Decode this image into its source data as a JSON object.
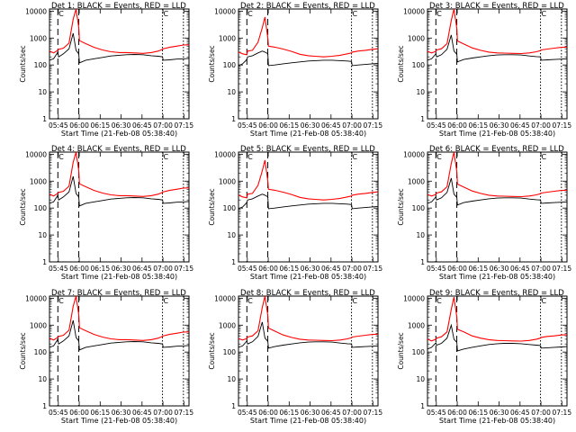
{
  "colors": {
    "events": "#000000",
    "lld": "#ff0000",
    "axes": "#000000",
    "background": "#ffffff"
  },
  "shared": {
    "ylabel": "Counts/sec",
    "xlabel": "Start Time (21-Feb-08 05:38:40)",
    "x_tick_labels": [
      "05:45",
      "06:00",
      "06:15",
      "06:30",
      "06:45",
      "07:00",
      "07:15"
    ],
    "y_tick_labels": [
      "1",
      "10",
      "100",
      "1000",
      "10000"
    ],
    "ylim": [
      1,
      12000
    ],
    "xlim_minutes_after_start": [
      0,
      100
    ],
    "y_scale": "log",
    "dashed_markers_minutes": [
      6,
      21
    ],
    "dotted_markers_minutes": [
      81,
      96
    ],
    "flag_marker": "C"
  },
  "chart_data": [
    {
      "type": "line",
      "title": "Det 1: BLACK = Events, RED = LLD",
      "series": [
        {
          "name": "BLACK = Events",
          "x": [
            0,
            3,
            6,
            6.5,
            10,
            14,
            17,
            19,
            21,
            21.5,
            26,
            32,
            38,
            44,
            50,
            55,
            61,
            67,
            73,
            78,
            81,
            81.5,
            86,
            91,
            96,
            100
          ],
          "values": [
            150,
            170,
            300,
            200,
            260,
            400,
            1500,
            350,
            260,
            120,
            150,
            170,
            190,
            215,
            230,
            240,
            245,
            240,
            220,
            210,
            200,
            150,
            155,
            165,
            170,
            175
          ]
        },
        {
          "name": "RED = LLD",
          "x": [
            0,
            3,
            6,
            6.5,
            10,
            14,
            17,
            19,
            21,
            21.5,
            26,
            32,
            38,
            44,
            50,
            55,
            61,
            67,
            73,
            78,
            81,
            81.5,
            86,
            91,
            96,
            100
          ],
          "values": [
            330,
            280,
            350,
            380,
            420,
            650,
            5000,
            14000,
            2500,
            800,
            620,
            450,
            360,
            310,
            290,
            290,
            280,
            270,
            290,
            330,
            380,
            400,
            450,
            500,
            550,
            560
          ]
        }
      ]
    },
    {
      "type": "line",
      "title": "Det 2: BLACK = Events, RED = LLD",
      "series": [
        {
          "name": "BLACK = Events",
          "x": [
            0,
            3,
            6,
            6.5,
            10,
            14,
            17,
            19,
            21,
            21.5,
            26,
            32,
            38,
            44,
            50,
            55,
            61,
            67,
            73,
            78,
            81,
            81.5,
            86,
            91,
            96,
            100
          ],
          "values": [
            95,
            110,
            160,
            200,
            220,
            280,
            330,
            300,
            260,
            95,
            100,
            110,
            120,
            130,
            140,
            145,
            150,
            150,
            145,
            140,
            135,
            95,
            100,
            105,
            110,
            115
          ]
        },
        {
          "name": "RED = LLD",
          "x": [
            0,
            3,
            6,
            6.5,
            10,
            14,
            17,
            19,
            21,
            21.5,
            26,
            32,
            38,
            44,
            50,
            55,
            61,
            67,
            73,
            78,
            81,
            81.5,
            86,
            91,
            96,
            100
          ],
          "values": [
            300,
            260,
            240,
            330,
            350,
            700,
            2400,
            6000,
            1000,
            500,
            460,
            390,
            320,
            250,
            220,
            210,
            200,
            210,
            230,
            260,
            280,
            300,
            330,
            350,
            380,
            400
          ]
        }
      ]
    },
    {
      "type": "line",
      "title": "Det 3: BLACK = Events, RED = LLD",
      "series": [
        {
          "name": "BLACK = Events",
          "x": [
            0,
            3,
            6,
            6.5,
            10,
            14,
            17,
            19,
            21,
            21.5,
            26,
            32,
            38,
            44,
            50,
            55,
            61,
            67,
            73,
            78,
            81,
            81.5,
            86,
            91,
            96,
            100
          ],
          "values": [
            150,
            170,
            260,
            200,
            240,
            380,
            1300,
            330,
            250,
            130,
            160,
            180,
            200,
            220,
            235,
            240,
            240,
            235,
            215,
            205,
            200,
            150,
            155,
            160,
            165,
            170
          ]
        },
        {
          "name": "RED = LLD",
          "x": [
            0,
            3,
            6,
            6.5,
            10,
            14,
            17,
            19,
            21,
            21.5,
            26,
            32,
            38,
            44,
            50,
            55,
            61,
            67,
            73,
            78,
            81,
            81.5,
            86,
            91,
            96,
            100
          ],
          "values": [
            320,
            280,
            320,
            360,
            400,
            620,
            4500,
            13000,
            2300,
            780,
            600,
            430,
            350,
            300,
            280,
            275,
            270,
            265,
            280,
            310,
            340,
            360,
            390,
            420,
            450,
            460
          ]
        }
      ]
    },
    {
      "type": "line",
      "title": "Det 4: BLACK = Events, RED = LLD",
      "series": [
        {
          "name": "BLACK = Events",
          "x": [
            0,
            3,
            6,
            6.5,
            10,
            14,
            17,
            19,
            21,
            21.5,
            26,
            32,
            38,
            44,
            50,
            55,
            61,
            67,
            73,
            78,
            81,
            81.5,
            86,
            91,
            96,
            100
          ],
          "values": [
            150,
            170,
            300,
            200,
            260,
            400,
            1500,
            350,
            260,
            120,
            150,
            170,
            190,
            215,
            230,
            240,
            245,
            240,
            220,
            210,
            200,
            150,
            155,
            165,
            170,
            175
          ]
        },
        {
          "name": "RED = LLD",
          "x": [
            0,
            3,
            6,
            6.5,
            10,
            14,
            17,
            19,
            21,
            21.5,
            26,
            32,
            38,
            44,
            50,
            55,
            61,
            67,
            73,
            78,
            81,
            81.5,
            86,
            91,
            96,
            100
          ],
          "values": [
            330,
            280,
            350,
            380,
            420,
            650,
            5000,
            14000,
            2500,
            800,
            620,
            450,
            360,
            310,
            290,
            290,
            280,
            270,
            290,
            330,
            380,
            400,
            450,
            500,
            550,
            560
          ]
        }
      ]
    },
    {
      "type": "line",
      "title": "Det 5: BLACK = Events, RED = LLD",
      "series": [
        {
          "name": "BLACK = Events",
          "x": [
            0,
            3,
            6,
            6.5,
            10,
            14,
            17,
            19,
            21,
            21.5,
            26,
            32,
            38,
            44,
            50,
            55,
            61,
            67,
            73,
            78,
            81,
            81.5,
            86,
            91,
            96,
            100
          ],
          "values": [
            95,
            110,
            160,
            200,
            220,
            280,
            330,
            300,
            260,
            95,
            100,
            110,
            120,
            130,
            140,
            145,
            150,
            150,
            145,
            140,
            135,
            95,
            100,
            105,
            110,
            115
          ]
        },
        {
          "name": "RED = LLD",
          "x": [
            0,
            3,
            6,
            6.5,
            10,
            14,
            17,
            19,
            21,
            21.5,
            26,
            32,
            38,
            44,
            50,
            55,
            61,
            67,
            73,
            78,
            81,
            81.5,
            86,
            91,
            96,
            100
          ],
          "values": [
            300,
            260,
            240,
            330,
            350,
            700,
            2400,
            6000,
            1000,
            500,
            460,
            390,
            320,
            250,
            220,
            210,
            200,
            210,
            230,
            260,
            280,
            300,
            330,
            350,
            380,
            400
          ]
        }
      ]
    },
    {
      "type": "line",
      "title": "Det 6: BLACK = Events, RED = LLD",
      "series": [
        {
          "name": "BLACK = Events",
          "x": [
            0,
            3,
            6,
            6.5,
            10,
            14,
            17,
            19,
            21,
            21.5,
            26,
            32,
            38,
            44,
            50,
            55,
            61,
            67,
            73,
            78,
            81,
            81.5,
            86,
            91,
            96,
            100
          ],
          "values": [
            150,
            170,
            260,
            200,
            240,
            380,
            1300,
            330,
            250,
            130,
            160,
            180,
            200,
            220,
            235,
            240,
            240,
            235,
            215,
            205,
            200,
            150,
            155,
            160,
            165,
            170
          ]
        },
        {
          "name": "RED = LLD",
          "x": [
            0,
            3,
            6,
            6.5,
            10,
            14,
            17,
            19,
            21,
            21.5,
            26,
            32,
            38,
            44,
            50,
            55,
            61,
            67,
            73,
            78,
            81,
            81.5,
            86,
            91,
            96,
            100
          ],
          "values": [
            320,
            280,
            320,
            360,
            400,
            620,
            4500,
            13000,
            2300,
            780,
            600,
            430,
            350,
            300,
            280,
            275,
            270,
            265,
            280,
            310,
            340,
            360,
            390,
            420,
            450,
            460
          ]
        }
      ]
    },
    {
      "type": "line",
      "title": "Det 7: BLACK = Events, RED = LLD",
      "series": [
        {
          "name": "BLACK = Events",
          "x": [
            0,
            3,
            6,
            6.5,
            10,
            14,
            17,
            19,
            21,
            21.5,
            26,
            32,
            38,
            44,
            50,
            55,
            61,
            67,
            73,
            78,
            81,
            81.5,
            86,
            91,
            96,
            100
          ],
          "values": [
            150,
            170,
            300,
            200,
            260,
            400,
            1500,
            350,
            260,
            120,
            150,
            170,
            190,
            215,
            230,
            240,
            245,
            240,
            220,
            210,
            200,
            150,
            155,
            165,
            170,
            175
          ]
        },
        {
          "name": "RED = LLD",
          "x": [
            0,
            3,
            6,
            6.5,
            10,
            14,
            17,
            19,
            21,
            21.5,
            26,
            32,
            38,
            44,
            50,
            55,
            61,
            67,
            73,
            78,
            81,
            81.5,
            86,
            91,
            96,
            100
          ],
          "values": [
            330,
            280,
            350,
            380,
            420,
            650,
            5000,
            14000,
            2500,
            800,
            620,
            450,
            360,
            310,
            290,
            290,
            280,
            270,
            290,
            330,
            380,
            400,
            450,
            500,
            550,
            560
          ]
        }
      ]
    },
    {
      "type": "line",
      "title": "Det 8: BLACK = Events, RED = LLD",
      "series": [
        {
          "name": "BLACK = Events",
          "x": [
            0,
            3,
            6,
            6.5,
            10,
            14,
            17,
            19,
            21,
            21.5,
            26,
            32,
            38,
            44,
            50,
            55,
            61,
            67,
            73,
            78,
            81,
            81.5,
            86,
            91,
            96,
            100
          ],
          "values": [
            150,
            170,
            260,
            200,
            240,
            380,
            1300,
            330,
            250,
            140,
            160,
            180,
            200,
            220,
            235,
            240,
            240,
            235,
            215,
            205,
            200,
            150,
            155,
            160,
            165,
            170
          ]
        },
        {
          "name": "RED = LLD",
          "x": [
            0,
            3,
            6,
            6.5,
            10,
            14,
            17,
            19,
            21,
            21.5,
            26,
            32,
            38,
            44,
            50,
            55,
            61,
            67,
            73,
            78,
            81,
            81.5,
            86,
            91,
            96,
            100
          ],
          "values": [
            320,
            280,
            320,
            360,
            400,
            620,
            4500,
            13000,
            2300,
            780,
            600,
            430,
            350,
            300,
            280,
            275,
            270,
            265,
            280,
            310,
            340,
            360,
            390,
            420,
            450,
            460
          ]
        }
      ]
    },
    {
      "type": "line",
      "title": "Det 9: BLACK = Events, RED = LLD",
      "series": [
        {
          "name": "BLACK = Events",
          "x": [
            0,
            3,
            6,
            6.5,
            10,
            14,
            17,
            19,
            21,
            21.5,
            26,
            32,
            38,
            44,
            50,
            55,
            61,
            67,
            73,
            78,
            81,
            81.5,
            86,
            91,
            96,
            100
          ],
          "values": [
            130,
            150,
            220,
            180,
            210,
            330,
            1000,
            300,
            230,
            110,
            130,
            150,
            170,
            190,
            205,
            210,
            210,
            205,
            190,
            180,
            175,
            140,
            145,
            150,
            155,
            160
          ]
        },
        {
          "name": "RED = LLD",
          "x": [
            0,
            3,
            6,
            6.5,
            10,
            14,
            17,
            19,
            21,
            21.5,
            26,
            32,
            38,
            44,
            50,
            55,
            61,
            67,
            73,
            78,
            81,
            81.5,
            86,
            91,
            96,
            100
          ],
          "values": [
            300,
            260,
            300,
            330,
            370,
            560,
            3800,
            11000,
            2000,
            700,
            560,
            400,
            330,
            290,
            270,
            265,
            260,
            255,
            270,
            300,
            330,
            350,
            380,
            400,
            430,
            440
          ]
        }
      ]
    }
  ]
}
